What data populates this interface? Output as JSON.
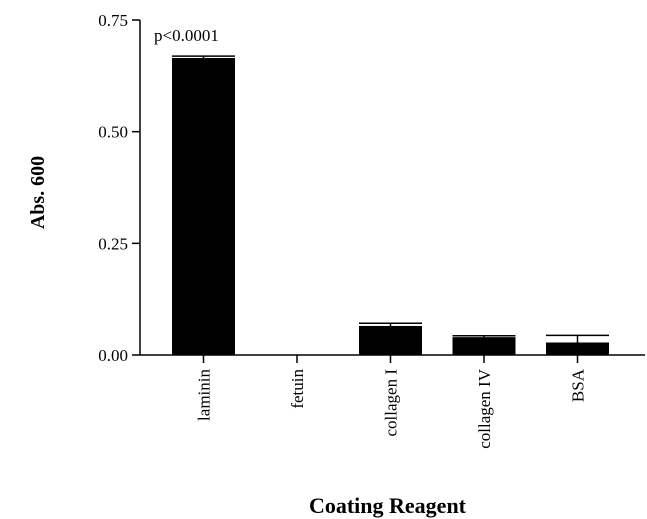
{
  "chart_data": {
    "type": "bar",
    "categories": [
      "laminin",
      "fetuin",
      "collagen I",
      "collagen IV",
      "BSA"
    ],
    "values": [
      0.665,
      0.0,
      0.065,
      0.04,
      0.028
    ],
    "errors": [
      0.004,
      0.0,
      0.006,
      0.003,
      0.016
    ],
    "ylim": [
      0,
      0.75
    ],
    "yticks": [
      "0.00",
      "0.25",
      "0.50",
      "0.75"
    ],
    "ytick_values": [
      0,
      0.25,
      0.5,
      0.75
    ],
    "xlabel": "Coating Reagent",
    "ylabel": "Abs. 600",
    "annotation": "p<0.0001",
    "bar_color": "#000000",
    "grid": false,
    "legend": "none"
  }
}
